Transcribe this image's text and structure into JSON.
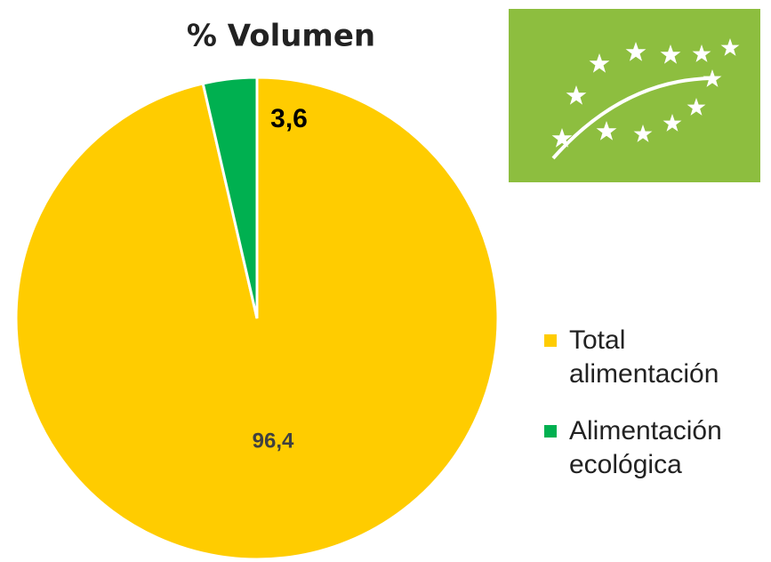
{
  "chart_data": {
    "type": "pie",
    "title": "% Volumen",
    "categories": [
      "Total alimentación",
      "Alimentación ecológica"
    ],
    "values": [
      96.4,
      3.6
    ],
    "value_labels": [
      "96,4",
      "3,6"
    ],
    "colors": [
      "#FFCC00",
      "#00B050"
    ]
  }
}
